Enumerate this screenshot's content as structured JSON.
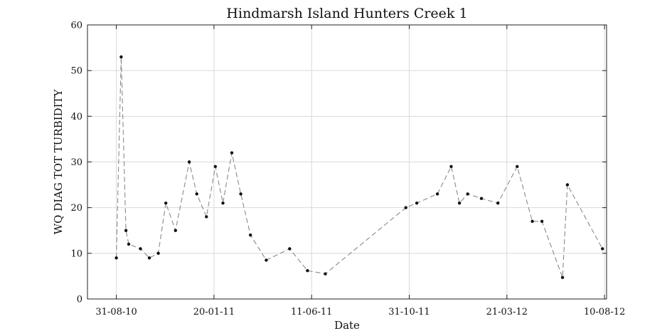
{
  "chart_data": {
    "type": "line",
    "title": "Hindmarsh Island Hunters Creek 1",
    "xlabel": "Date",
    "ylabel": "WQ DIAG TOT TURBIDITY",
    "x_axis_type": "date",
    "xlim": [
      "2010-07-20",
      "2012-08-13"
    ],
    "ylim": [
      0,
      60
    ],
    "x_ticks": [
      "2010-08-31",
      "2011-01-20",
      "2011-06-11",
      "2011-10-31",
      "2012-03-21",
      "2012-08-10"
    ],
    "x_tick_labels": [
      "31-08-10",
      "20-01-11",
      "11-06-11",
      "31-10-11",
      "21-03-12",
      "10-08-12"
    ],
    "y_ticks": [
      0,
      10,
      20,
      30,
      40,
      50,
      60
    ],
    "y_tick_labels": [
      "0",
      "10",
      "20",
      "30",
      "40",
      "50",
      "60"
    ],
    "grid": true,
    "series": [
      {
        "color": "#8a8a8a",
        "marker_color": "#111111",
        "line_style": "dashed",
        "points": [
          {
            "x": "2010-08-31",
            "y": 9
          },
          {
            "x": "2010-09-07",
            "y": 53
          },
          {
            "x": "2010-09-14",
            "y": 15
          },
          {
            "x": "2010-09-18",
            "y": 12
          },
          {
            "x": "2010-10-05",
            "y": 11
          },
          {
            "x": "2010-10-18",
            "y": 9
          },
          {
            "x": "2010-10-31",
            "y": 10
          },
          {
            "x": "2010-11-11",
            "y": 21
          },
          {
            "x": "2010-11-25",
            "y": 15
          },
          {
            "x": "2010-12-15",
            "y": 30
          },
          {
            "x": "2010-12-26",
            "y": 23
          },
          {
            "x": "2011-01-09",
            "y": 18
          },
          {
            "x": "2011-01-22",
            "y": 29
          },
          {
            "x": "2011-02-02",
            "y": 21
          },
          {
            "x": "2011-02-15",
            "y": 32
          },
          {
            "x": "2011-02-28",
            "y": 23
          },
          {
            "x": "2011-03-14",
            "y": 14
          },
          {
            "x": "2011-04-06",
            "y": 8.5
          },
          {
            "x": "2011-05-10",
            "y": 11
          },
          {
            "x": "2011-06-05",
            "y": 6.2
          },
          {
            "x": "2011-07-01",
            "y": 5.5
          },
          {
            "x": "2011-10-26",
            "y": 20
          },
          {
            "x": "2011-11-11",
            "y": 21
          },
          {
            "x": "2011-12-11",
            "y": 23
          },
          {
            "x": "2011-12-31",
            "y": 29
          },
          {
            "x": "2012-01-12",
            "y": 21
          },
          {
            "x": "2012-01-24",
            "y": 23
          },
          {
            "x": "2012-02-13",
            "y": 22
          },
          {
            "x": "2012-03-08",
            "y": 21
          },
          {
            "x": "2012-04-05",
            "y": 29
          },
          {
            "x": "2012-04-27",
            "y": 17
          },
          {
            "x": "2012-05-11",
            "y": 17
          },
          {
            "x": "2012-06-10",
            "y": 4.7
          },
          {
            "x": "2012-06-17",
            "y": 25
          },
          {
            "x": "2012-08-07",
            "y": 11
          }
        ]
      }
    ]
  }
}
